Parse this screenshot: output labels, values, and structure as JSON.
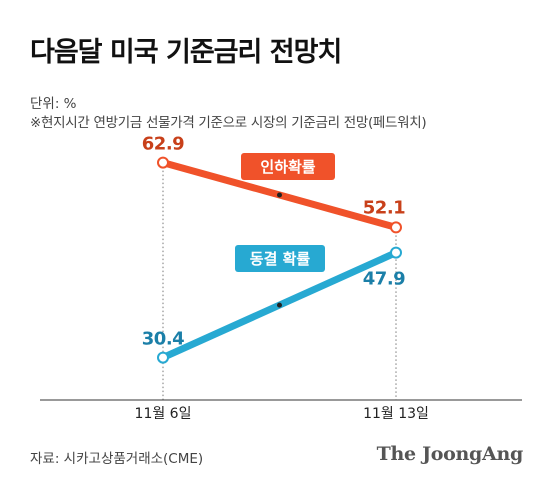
{
  "title": "다음달 미국 기준금리 전망치",
  "unit": "단위: %",
  "note": "※현지시간 연방기금 선물가격 기준으로 시장의 기준금리 전망(페드워치)",
  "source": "자료: 시카고상품거래소(CME)",
  "logo": "The JoongAng",
  "colors": {
    "cut": "#f0522a",
    "hold": "#27a9d2",
    "cut_value": "#c8401a",
    "hold_value": "#1b7fa8"
  },
  "chart_data": {
    "type": "line",
    "title": "다음달 미국 기준금리 전망치",
    "x": [
      "11월 6일",
      "11월 13일"
    ],
    "ylabel": "",
    "series": [
      {
        "name": "인하확률",
        "values": [
          62.9,
          52.1
        ]
      },
      {
        "name": "동결 확률",
        "values": [
          30.4,
          47.9
        ]
      }
    ],
    "value_labels": [
      [
        "62.9",
        "52.1"
      ],
      [
        "30.4",
        "47.9"
      ]
    ],
    "ylim": [
      25,
      70
    ],
    "grid": false
  }
}
